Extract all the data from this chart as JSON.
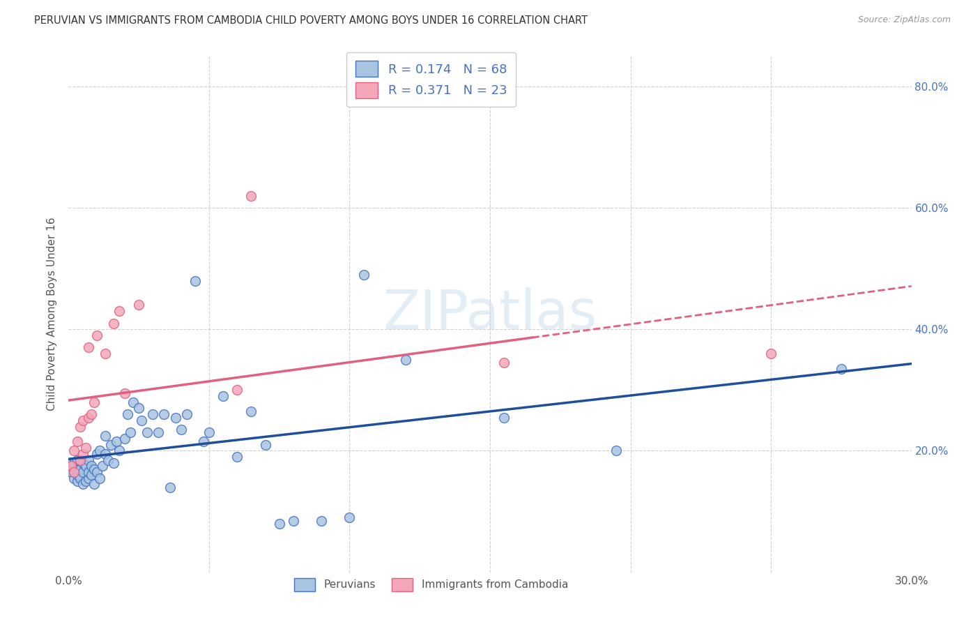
{
  "title": "PERUVIAN VS IMMIGRANTS FROM CAMBODIA CHILD POVERTY AMONG BOYS UNDER 16 CORRELATION CHART",
  "source": "Source: ZipAtlas.com",
  "ylabel": "Child Poverty Among Boys Under 16",
  "xlim": [
    0.0,
    0.3
  ],
  "ylim": [
    0.0,
    0.85
  ],
  "xticks": [
    0.0,
    0.05,
    0.1,
    0.15,
    0.2,
    0.25,
    0.3
  ],
  "yticks": [
    0.0,
    0.2,
    0.4,
    0.6,
    0.8
  ],
  "ytick_labels": [
    "",
    "20.0%",
    "40.0%",
    "60.0%",
    "80.0%"
  ],
  "peruvian_color": "#a8c4e0",
  "cambodia_color": "#f4a7b9",
  "peruvian_edge_color": "#4472c4",
  "cambodia_edge_color": "#e06080",
  "line_peruvian_color": "#1f4e9c",
  "line_cambodia_color": "#e06080",
  "R_peruvian": 0.174,
  "N_peruvian": 68,
  "R_cambodia": 0.371,
  "N_cambodia": 23,
  "legend_label_peruvian": "Peruvians",
  "legend_label_cambodia": "Immigrants from Cambodia",
  "watermark": "ZIPatlas",
  "peruvian_x": [
    0.001,
    0.001,
    0.001,
    0.002,
    0.002,
    0.002,
    0.002,
    0.003,
    0.003,
    0.003,
    0.003,
    0.004,
    0.004,
    0.004,
    0.005,
    0.005,
    0.005,
    0.006,
    0.006,
    0.007,
    0.007,
    0.007,
    0.008,
    0.008,
    0.009,
    0.009,
    0.01,
    0.01,
    0.011,
    0.011,
    0.012,
    0.013,
    0.013,
    0.014,
    0.015,
    0.016,
    0.017,
    0.018,
    0.02,
    0.021,
    0.022,
    0.023,
    0.025,
    0.026,
    0.028,
    0.03,
    0.032,
    0.034,
    0.036,
    0.038,
    0.04,
    0.042,
    0.045,
    0.048,
    0.05,
    0.055,
    0.06,
    0.065,
    0.07,
    0.075,
    0.08,
    0.09,
    0.1,
    0.105,
    0.12,
    0.155,
    0.195,
    0.275
  ],
  "peruvian_y": [
    0.165,
    0.175,
    0.18,
    0.155,
    0.165,
    0.175,
    0.18,
    0.15,
    0.16,
    0.17,
    0.185,
    0.155,
    0.17,
    0.185,
    0.145,
    0.165,
    0.18,
    0.15,
    0.175,
    0.155,
    0.165,
    0.185,
    0.16,
    0.175,
    0.145,
    0.17,
    0.165,
    0.195,
    0.155,
    0.2,
    0.175,
    0.195,
    0.225,
    0.185,
    0.21,
    0.18,
    0.215,
    0.2,
    0.22,
    0.26,
    0.23,
    0.28,
    0.27,
    0.25,
    0.23,
    0.26,
    0.23,
    0.26,
    0.14,
    0.255,
    0.235,
    0.26,
    0.48,
    0.215,
    0.23,
    0.29,
    0.19,
    0.265,
    0.21,
    0.08,
    0.085,
    0.085,
    0.09,
    0.49,
    0.35,
    0.255,
    0.2,
    0.335
  ],
  "cambodia_x": [
    0.001,
    0.002,
    0.002,
    0.003,
    0.004,
    0.004,
    0.005,
    0.005,
    0.006,
    0.007,
    0.007,
    0.008,
    0.009,
    0.01,
    0.013,
    0.016,
    0.018,
    0.02,
    0.025,
    0.06,
    0.065,
    0.155,
    0.25
  ],
  "cambodia_y": [
    0.175,
    0.165,
    0.2,
    0.215,
    0.185,
    0.24,
    0.195,
    0.25,
    0.205,
    0.255,
    0.37,
    0.26,
    0.28,
    0.39,
    0.36,
    0.41,
    0.43,
    0.295,
    0.44,
    0.3,
    0.62,
    0.345,
    0.36
  ]
}
